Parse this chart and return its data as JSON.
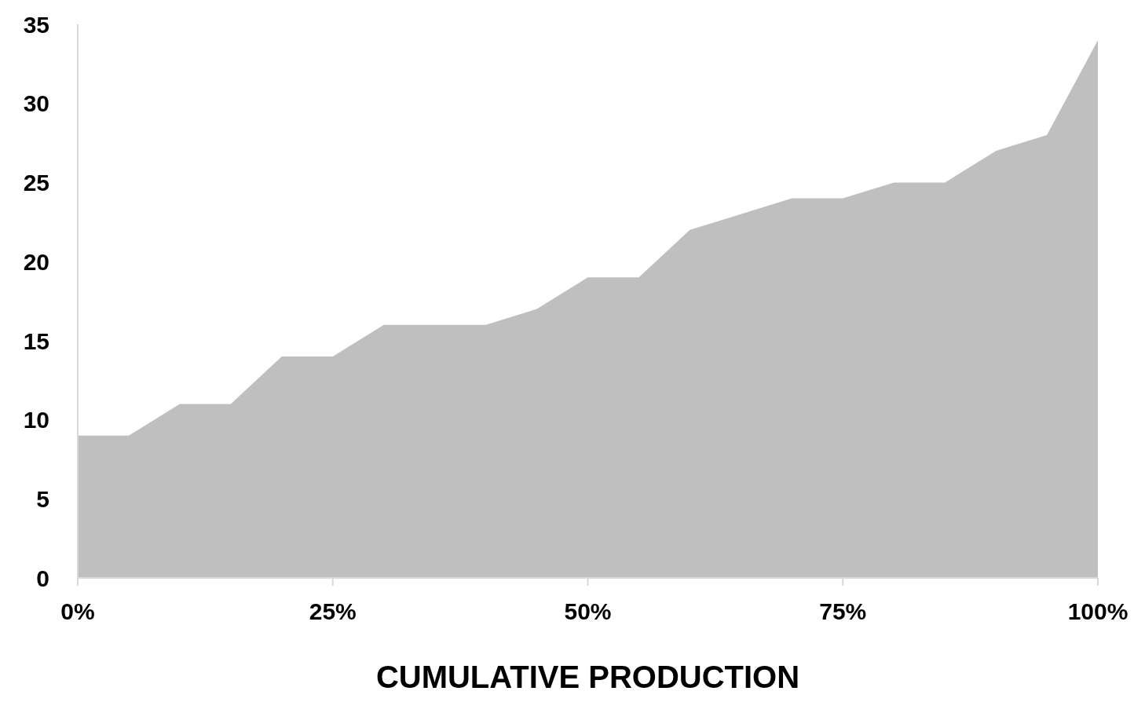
{
  "chart_data": {
    "type": "area",
    "xlabel": "CUMULATIVE PRODUCTION",
    "x": [
      0,
      5,
      10,
      15,
      20,
      25,
      30,
      35,
      40,
      45,
      50,
      55,
      60,
      65,
      70,
      75,
      80,
      85,
      90,
      95,
      100
    ],
    "series": [
      {
        "color": "#bfbfbf",
        "values": [
          9,
          9,
          11,
          11,
          14,
          14,
          16,
          16,
          16,
          17,
          19,
          19,
          22,
          23,
          24,
          24,
          25,
          25,
          27,
          28,
          34
        ]
      }
    ],
    "xlim": [
      0,
      100
    ],
    "xticks": [
      {
        "value": 0,
        "label": "0%"
      },
      {
        "value": 25,
        "label": "25%"
      },
      {
        "value": 50,
        "label": "50%"
      },
      {
        "value": 75,
        "label": "75%"
      },
      {
        "value": 100,
        "label": "100%"
      }
    ],
    "ylim": [
      0,
      35
    ],
    "yticks": [
      0,
      5,
      10,
      15,
      20,
      25,
      30,
      35
    ],
    "grid": false,
    "legend": false
  }
}
